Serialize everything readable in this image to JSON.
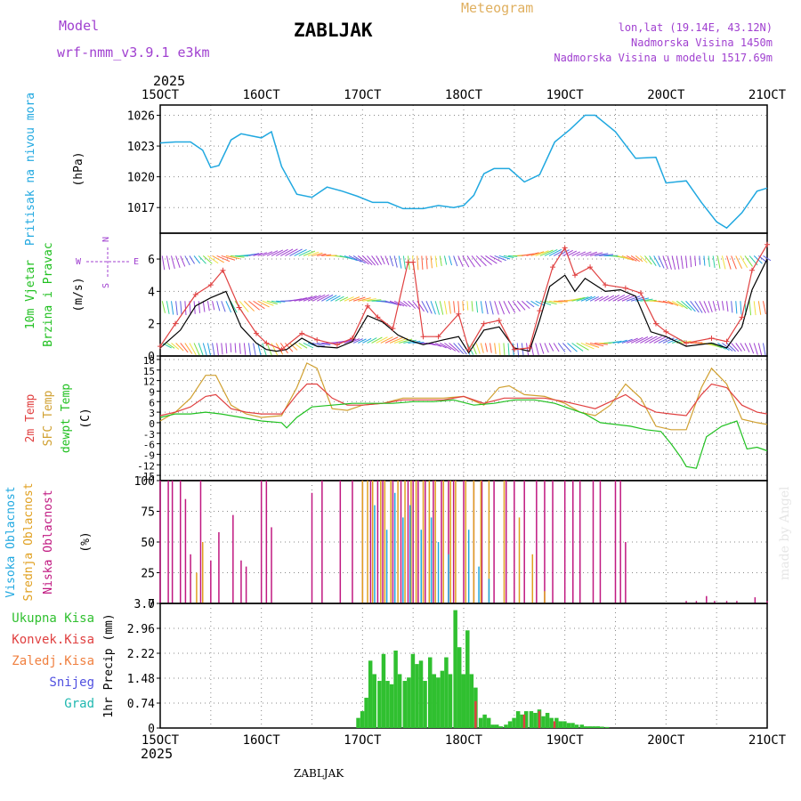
{
  "header": {
    "model_label": "Model",
    "model_name": "wrf-nmm_v3.9.1 e3km",
    "station": "ZABLJAK",
    "title": "Meteogram",
    "coords": "lon,lat (19.14E, 43.12N)",
    "elevation": "Nadmorska Visina 1450m",
    "model_elevation": "Nadmorska Visina u modelu 1517.69m",
    "footer_station": "ZABLJAK",
    "watermark": "made by Angel",
    "year_top": "2025",
    "year_bottom": "2025"
  },
  "colors": {
    "purple": "#a040d0",
    "gold": "#e0b060",
    "pressure": "#20a8e0",
    "temp2m": "#e04040",
    "sfc": "#d0a030",
    "dewpt": "#20c020",
    "wind_speed": "#000000",
    "wind_gust": "#e04040",
    "low_cloud": "#c01880",
    "mid_cloud": "#e0a020",
    "high_cloud": "#20a8e0",
    "precip": "#30c030",
    "conv": "#e04040"
  },
  "chart_data": [
    {
      "type": "line",
      "title": "Pritisak na nivou mora",
      "ylabel": "(hPa)",
      "ylim": [
        1014.5,
        1027
      ],
      "yticks": [
        "1017",
        "1020",
        "1023",
        "1026"
      ],
      "x_day_range": [
        15,
        21
      ],
      "x_ticks": [
        "15OCT",
        "16OCT",
        "17OCT",
        "18OCT",
        "19OCT",
        "20OCT",
        "21OCT"
      ],
      "series": [
        {
          "name": "pressure",
          "x": [
            15.0,
            15.15,
            15.3,
            15.42,
            15.5,
            15.58,
            15.7,
            15.8,
            15.9,
            16.0,
            16.1,
            16.2,
            16.35,
            16.5,
            16.65,
            16.8,
            16.95,
            17.1,
            17.25,
            17.4,
            17.6,
            17.75,
            17.9,
            18.0,
            18.1,
            18.2,
            18.3,
            18.45,
            18.6,
            18.75,
            18.9,
            19.05,
            19.2,
            19.3,
            19.5,
            19.7,
            19.9,
            20.0,
            20.2,
            20.35,
            20.5,
            20.6,
            20.75,
            20.9,
            21.0
          ],
          "values": [
            1023.3,
            1023.4,
            1023.4,
            1022.6,
            1020.9,
            1021.1,
            1023.6,
            1024.2,
            1024.0,
            1023.8,
            1024.4,
            1021.0,
            1018.3,
            1018.0,
            1019.0,
            1018.6,
            1018.1,
            1017.5,
            1017.5,
            1016.9,
            1016.9,
            1017.2,
            1017.0,
            1017.2,
            1018.2,
            1020.3,
            1020.8,
            1020.8,
            1019.5,
            1020.2,
            1023.4,
            1024.6,
            1026.0,
            1026.0,
            1024.4,
            1021.8,
            1021.9,
            1019.4,
            1019.6,
            1017.5,
            1015.6,
            1015.0,
            1016.5,
            1018.6,
            1018.9
          ]
        }
      ]
    },
    {
      "type": "line",
      "title": "10m Vjetar Brzina i Pravac",
      "ylabel": "(m/s)",
      "ylim": [
        0,
        7.6
      ],
      "yticks": [
        "0",
        "2",
        "4",
        "6"
      ],
      "compass_labels": [
        "N",
        "W",
        "E",
        "S"
      ],
      "series": [
        {
          "name": "wind_speed",
          "x": [
            15.0,
            15.2,
            15.35,
            15.5,
            15.65,
            15.8,
            15.95,
            16.05,
            16.15,
            16.25,
            16.4,
            16.55,
            16.75,
            16.9,
            17.05,
            17.2,
            17.35,
            17.45,
            17.6,
            17.8,
            17.95,
            18.05,
            18.2,
            18.35,
            18.5,
            18.65,
            18.75,
            18.85,
            19.0,
            19.1,
            19.2,
            19.4,
            19.55,
            19.7,
            19.85,
            20.0,
            20.2,
            20.45,
            20.6,
            20.75,
            20.85,
            21.0
          ],
          "values": [
            0.5,
            1.6,
            3.1,
            3.6,
            4.0,
            1.8,
            0.8,
            0.4,
            0.3,
            0.4,
            1.1,
            0.6,
            0.5,
            0.9,
            2.5,
            2.1,
            1.3,
            1.0,
            0.7,
            1.0,
            1.2,
            0.2,
            1.6,
            1.8,
            0.5,
            0.3,
            2.2,
            4.3,
            5.0,
            4.0,
            4.8,
            4.0,
            4.1,
            3.7,
            1.5,
            1.2,
            0.6,
            0.8,
            0.5,
            1.8,
            4.1,
            6.0
          ]
        },
        {
          "name": "wind_gust",
          "x": [
            15.0,
            15.15,
            15.35,
            15.5,
            15.62,
            15.78,
            15.95,
            16.05,
            16.2,
            16.4,
            16.55,
            16.75,
            16.9,
            17.05,
            17.15,
            17.3,
            17.45,
            17.5,
            17.6,
            17.75,
            17.95,
            18.05,
            18.2,
            18.35,
            18.5,
            18.65,
            18.75,
            18.88,
            19.0,
            19.1,
            19.25,
            19.4,
            19.6,
            19.75,
            19.9,
            20.0,
            20.2,
            20.45,
            20.6,
            20.75,
            20.85,
            21.0
          ],
          "values": [
            0.6,
            2.0,
            3.8,
            4.4,
            5.3,
            3.0,
            1.4,
            0.8,
            0.4,
            1.4,
            1.0,
            0.7,
            1.1,
            3.1,
            2.4,
            1.7,
            5.8,
            5.8,
            1.2,
            1.2,
            2.6,
            0.4,
            2.0,
            2.2,
            0.4,
            0.5,
            2.8,
            5.5,
            6.7,
            5.0,
            5.5,
            4.4,
            4.2,
            3.9,
            2.0,
            1.5,
            0.8,
            1.1,
            0.9,
            2.4,
            5.3,
            6.9
          ]
        }
      ]
    },
    {
      "type": "line",
      "title": "2m Temp / SFC Temp / dewpt Temp",
      "ylabel": "(C)",
      "ylim": [
        -16.5,
        19
      ],
      "yticks": [
        "-15",
        "-12",
        "-9",
        "-6",
        "-3",
        "0",
        "3",
        "6",
        "9",
        "12",
        "15",
        "18"
      ],
      "series": [
        {
          "name": "2m Temp",
          "x": [
            15.0,
            15.15,
            15.3,
            15.45,
            15.55,
            15.7,
            15.85,
            16.0,
            16.2,
            16.35,
            16.45,
            16.55,
            16.7,
            16.85,
            17.0,
            17.2,
            17.4,
            17.6,
            17.8,
            18.0,
            18.2,
            18.4,
            18.6,
            18.8,
            19.0,
            19.15,
            19.3,
            19.45,
            19.6,
            19.75,
            19.9,
            20.05,
            20.2,
            20.35,
            20.45,
            20.6,
            20.75,
            20.9,
            21.0
          ],
          "values": [
            2.0,
            3.0,
            4.5,
            7.5,
            8.0,
            4.0,
            3.0,
            2.5,
            2.5,
            8.0,
            11.0,
            11.0,
            7.0,
            5.0,
            5.0,
            5.5,
            6.5,
            6.5,
            6.5,
            7.5,
            5.5,
            7.0,
            7.0,
            7.0,
            6.0,
            5.0,
            4.0,
            6.0,
            8.0,
            5.0,
            3.0,
            2.5,
            2.0,
            8.0,
            11.0,
            10.0,
            5.0,
            3.0,
            2.5
          ]
        },
        {
          "name": "SFC Temp",
          "x": [
            15.0,
            15.15,
            15.3,
            15.45,
            15.55,
            15.7,
            15.85,
            16.0,
            16.2,
            16.35,
            16.45,
            16.55,
            16.7,
            16.85,
            17.0,
            17.2,
            17.4,
            17.6,
            17.8,
            18.0,
            18.2,
            18.35,
            18.45,
            18.6,
            18.8,
            19.0,
            19.15,
            19.3,
            19.45,
            19.6,
            19.75,
            19.9,
            20.05,
            20.2,
            20.35,
            20.45,
            20.6,
            20.75,
            20.9,
            21.0
          ],
          "values": [
            0.5,
            3.0,
            7.0,
            13.5,
            13.5,
            5.0,
            2.5,
            1.5,
            2.0,
            10.0,
            17.0,
            15.5,
            4.0,
            3.5,
            5.0,
            5.5,
            7.0,
            7.0,
            7.0,
            7.5,
            5.0,
            10.0,
            10.5,
            8.0,
            7.5,
            5.5,
            3.0,
            2.0,
            5.0,
            11.0,
            7.0,
            -1.0,
            -2.0,
            -2.0,
            10.0,
            15.5,
            11.0,
            1.0,
            0.0,
            -0.5
          ]
        },
        {
          "name": "dewpt Temp",
          "x": [
            15.0,
            15.15,
            15.3,
            15.45,
            15.6,
            15.8,
            16.0,
            16.2,
            16.25,
            16.35,
            16.5,
            16.7,
            16.9,
            17.1,
            17.3,
            17.5,
            17.7,
            17.9,
            18.1,
            18.3,
            18.5,
            18.7,
            18.9,
            19.05,
            19.2,
            19.35,
            19.5,
            19.65,
            19.8,
            19.95,
            20.05,
            20.15,
            20.2,
            20.3,
            20.4,
            20.55,
            20.7,
            20.8,
            20.9,
            21.0
          ],
          "values": [
            1.5,
            2.5,
            2.5,
            3.0,
            2.5,
            1.5,
            0.5,
            0.0,
            -1.5,
            1.5,
            4.5,
            5.0,
            5.5,
            5.5,
            5.5,
            6.0,
            6.0,
            6.5,
            5.0,
            5.5,
            6.5,
            6.5,
            5.5,
            4.0,
            2.5,
            0.0,
            -0.5,
            -1.0,
            -2.0,
            -2.5,
            -6.0,
            -10.0,
            -12.5,
            -13.0,
            -4.0,
            -1.0,
            0.5,
            -7.5,
            -7.0,
            -8.0
          ]
        }
      ]
    },
    {
      "type": "bar",
      "title": "Visoka Oblacnost / Srednja Oblacnost / Niska Oblacnost",
      "ylabel": "(%)",
      "ylim": [
        0,
        100
      ],
      "yticks": [
        "0",
        "25",
        "50",
        "75",
        "100"
      ],
      "series": [
        {
          "name": "Niska Oblacnost",
          "x": [
            15.0,
            15.08,
            15.12,
            15.2,
            15.25,
            15.3,
            15.4,
            15.5,
            15.58,
            15.72,
            15.8,
            15.85,
            16.0,
            16.05,
            16.1,
            16.5,
            16.6,
            16.78,
            16.9,
            17.0,
            17.08,
            17.15,
            17.2,
            17.3,
            17.38,
            17.45,
            17.5,
            17.55,
            17.62,
            17.7,
            17.78,
            17.85,
            17.9,
            18.0,
            18.1,
            18.18,
            18.3,
            18.42,
            18.5,
            18.6,
            18.72,
            18.8,
            18.88,
            19.0,
            19.08,
            19.15,
            19.28,
            19.35,
            19.5,
            19.55,
            19.6,
            20.2,
            20.3,
            20.4,
            20.48,
            20.6,
            20.7,
            20.88,
            21.0
          ],
          "values": [
            100,
            100,
            100,
            100,
            85,
            40,
            100,
            35,
            58,
            72,
            35,
            30,
            100,
            100,
            62,
            90,
            100,
            100,
            100,
            100,
            100,
            100,
            100,
            100,
            100,
            100,
            100,
            100,
            100,
            100,
            100,
            100,
            100,
            100,
            100,
            100,
            100,
            100,
            100,
            100,
            100,
            100,
            100,
            100,
            100,
            100,
            100,
            100,
            100,
            100,
            50,
            2,
            2,
            6,
            2,
            2,
            2,
            5,
            2
          ]
        },
        {
          "name": "Srednja Oblacnost",
          "x": [
            15.36,
            15.42,
            17.0,
            17.05,
            17.1,
            17.18,
            17.22,
            17.28,
            17.35,
            17.42,
            17.48,
            17.53,
            17.6,
            17.66,
            17.72,
            17.8,
            17.87,
            17.92,
            18.02,
            18.1,
            18.17,
            18.25,
            18.4,
            18.55,
            18.68,
            18.8
          ],
          "values": [
            25,
            50,
            100,
            100,
            100,
            100,
            100,
            100,
            100,
            100,
            100,
            100,
            100,
            100,
            100,
            100,
            100,
            100,
            100,
            100,
            100,
            100,
            100,
            70,
            40,
            10
          ]
        },
        {
          "name": "Visoka Oblacnost",
          "x": [
            17.12,
            17.24,
            17.32,
            17.4,
            17.47,
            17.58,
            17.68,
            17.75,
            17.85,
            18.05,
            18.15,
            18.25
          ],
          "values": [
            80,
            60,
            90,
            70,
            80,
            60,
            70,
            50,
            40,
            60,
            30,
            20
          ]
        }
      ]
    },
    {
      "type": "bar",
      "title": "1hr Precip",
      "ylabel": "(mm)",
      "ylim": [
        0,
        3.7
      ],
      "yticks": [
        "0",
        "0.74",
        "1.48",
        "2.22",
        "2.96",
        "3.7"
      ],
      "legend": [
        "Ukupna Kisa",
        "Konvek.Kisa",
        "Zaledj.Kisa",
        "Snijeg",
        "Grad"
      ],
      "series": [
        {
          "name": "Ukupna Kisa",
          "x": [
            16.96,
            17.0,
            17.04,
            17.08,
            17.12,
            17.17,
            17.21,
            17.25,
            17.29,
            17.33,
            17.37,
            17.42,
            17.46,
            17.5,
            17.54,
            17.58,
            17.62,
            17.67,
            17.71,
            17.75,
            17.79,
            17.83,
            17.87,
            17.92,
            17.96,
            18.0,
            18.04,
            18.08,
            18.12,
            18.17,
            18.21,
            18.25,
            18.29,
            18.33,
            18.37,
            18.42,
            18.46,
            18.5,
            18.54,
            18.58,
            18.62,
            18.67,
            18.71,
            18.75,
            18.79,
            18.83,
            18.87,
            18.92,
            18.96,
            19.0,
            19.04,
            19.08,
            19.12,
            19.17,
            19.21,
            19.25,
            19.29,
            19.33,
            19.37,
            19.42
          ],
          "values": [
            0.3,
            0.5,
            0.9,
            2.0,
            1.6,
            1.4,
            2.2,
            1.4,
            1.3,
            2.3,
            1.6,
            1.4,
            1.5,
            2.2,
            1.9,
            2.0,
            1.4,
            2.1,
            1.6,
            1.5,
            1.7,
            2.1,
            1.6,
            3.5,
            2.4,
            1.6,
            2.9,
            1.6,
            1.2,
            0.3,
            0.4,
            0.3,
            0.1,
            0.1,
            0.05,
            0.1,
            0.2,
            0.3,
            0.5,
            0.4,
            0.5,
            0.5,
            0.45,
            0.55,
            0.35,
            0.45,
            0.3,
            0.3,
            0.2,
            0.2,
            0.15,
            0.15,
            0.1,
            0.1,
            0.05,
            0.05,
            0.05,
            0.05,
            0.04,
            0.03
          ]
        },
        {
          "name": "Konvek.Kisa",
          "x": [
            18.12,
            18.6,
            18.75,
            18.9
          ],
          "values": [
            0.8,
            0.4,
            0.5,
            0.2
          ]
        }
      ]
    }
  ]
}
